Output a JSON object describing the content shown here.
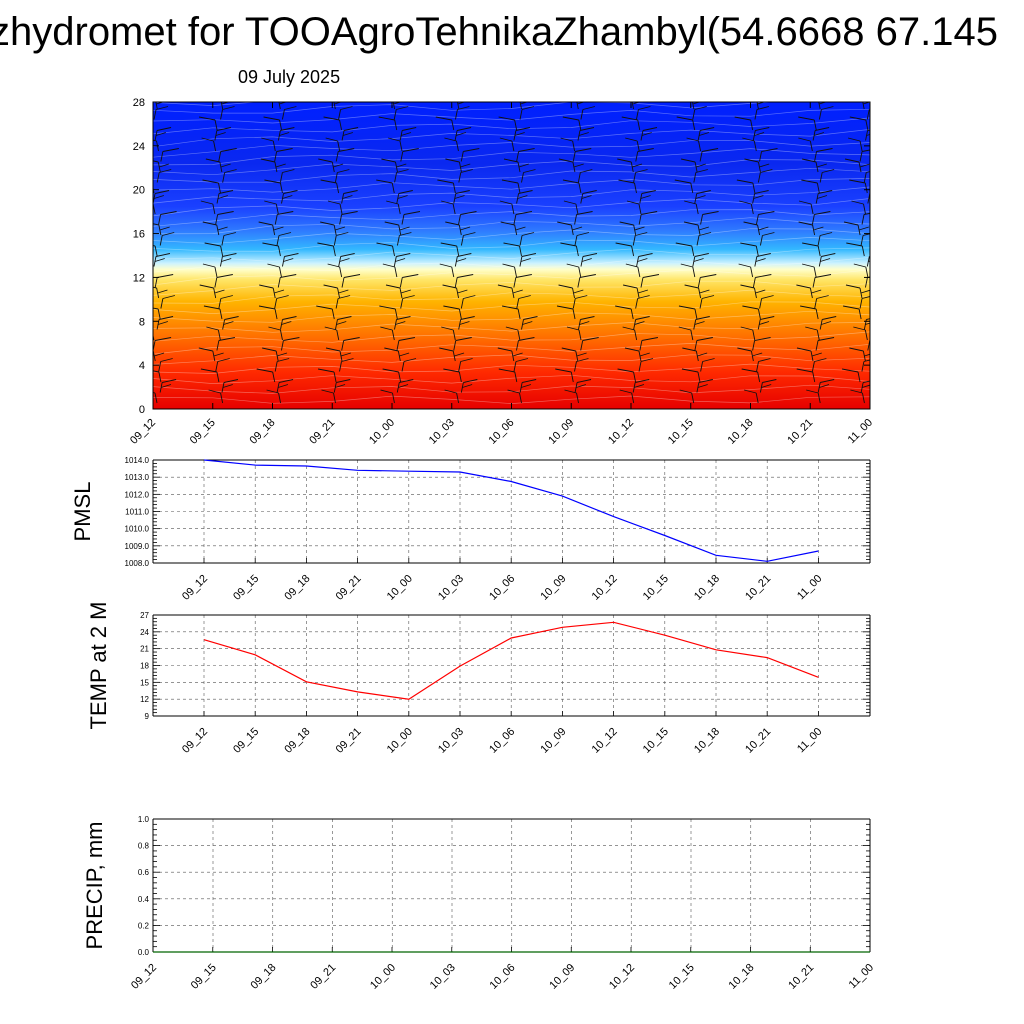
{
  "title": "zhydromet for TOOAgroTehnikaZhambyl(54.6668 67.145",
  "subtitle": "09 July 2025",
  "colors": {
    "pmsl_line": "#0000ff",
    "temp_line": "#ff0000",
    "precip_line": "#006400",
    "contour_warm": "#ff0000",
    "contour_mid": "#ffff99",
    "contour_cold": "#0000ff"
  },
  "chart_data": [
    {
      "type": "heatmap",
      "name": "vertical cross-section (time-height) with wind barbs",
      "x_categories": [
        "09_12",
        "09_15",
        "09_18",
        "09_21",
        "10_00",
        "10_03",
        "10_06",
        "10_09",
        "10_12",
        "10_15",
        "10_18",
        "10_21",
        "11_00"
      ],
      "yticks": [
        0,
        4,
        8,
        12,
        16,
        20,
        24,
        28
      ],
      "ylim": [
        0,
        28
      ],
      "freezing_level": [
        12.4,
        12.6,
        12.8,
        12.9,
        13.0,
        13.0,
        13.1,
        13.2,
        13.3,
        13.3,
        13.4,
        13.4,
        13.5
      ],
      "wind_barbs": true
    },
    {
      "type": "line",
      "ylabel": "PMSL",
      "x": [
        "09_12",
        "09_15",
        "09_18",
        "09_21",
        "10_00",
        "10_03",
        "10_06",
        "10_09",
        "10_12",
        "10_15",
        "10_18",
        "10_21",
        "11_00"
      ],
      "values": [
        1014.0,
        1013.7,
        1013.65,
        1013.4,
        1013.35,
        1013.3,
        1012.75,
        1011.9,
        1010.7,
        1009.6,
        1008.45,
        1008.1,
        1008.7
      ],
      "yticks": [
        "1008.0",
        "1009.0",
        "1010.0",
        "1011.0",
        "1012.0",
        "1013.0",
        "1014.0"
      ],
      "ylim": [
        1008.0,
        1014.0
      ],
      "grid": true
    },
    {
      "type": "line",
      "ylabel": "TEMP at 2 M",
      "x": [
        "09_12",
        "09_15",
        "09_18",
        "09_21",
        "10_00",
        "10_03",
        "10_06",
        "10_09",
        "10_12",
        "10_15",
        "10_18",
        "10_21",
        "11_00"
      ],
      "values": [
        22.6,
        19.9,
        15.1,
        13.3,
        12.0,
        17.9,
        22.9,
        24.8,
        25.7,
        23.4,
        20.8,
        19.4,
        15.9
      ],
      "yticks": [
        "9",
        "12",
        "15",
        "18",
        "21",
        "24",
        "27"
      ],
      "ylim": [
        9,
        27
      ],
      "grid": true
    },
    {
      "type": "line",
      "ylabel": "PRECIP, mm",
      "x": [
        "09_12",
        "09_15",
        "09_18",
        "09_21",
        "10_00",
        "10_03",
        "10_06",
        "10_09",
        "10_12",
        "10_15",
        "10_18",
        "10_21",
        "11_00"
      ],
      "values": [
        0,
        0,
        0,
        0,
        0,
        0,
        0,
        0,
        0,
        0,
        0,
        0,
        0
      ],
      "yticks": [
        "0.0",
        "0.2",
        "0.4",
        "0.6",
        "0.8",
        "1.0"
      ],
      "ylim": [
        0.0,
        1.0
      ],
      "grid": true
    }
  ]
}
